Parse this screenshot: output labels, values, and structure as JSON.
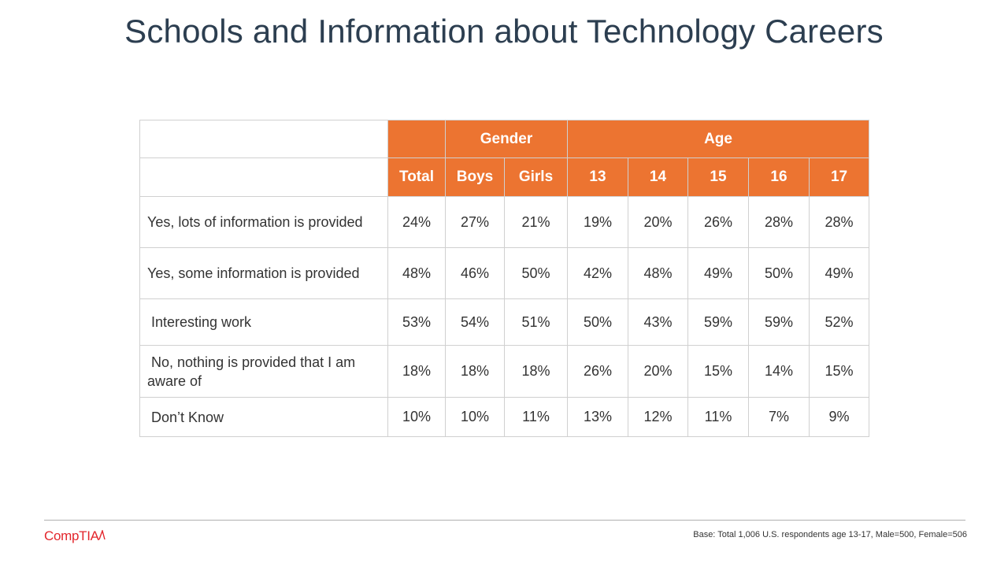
{
  "title": "Schools and Information about Technology Careers",
  "table": {
    "group_headers": {
      "gender": "Gender",
      "age": "Age"
    },
    "columns": [
      "Total",
      "Boys",
      "Girls",
      "13",
      "14",
      "15",
      "16",
      "17"
    ],
    "rows": [
      {
        "label": "Yes, lots of information is provided",
        "values": [
          "24%",
          "27%",
          "21%",
          "19%",
          "20%",
          "26%",
          "28%",
          "28%"
        ]
      },
      {
        "label": "Yes, some information is provided",
        "values": [
          "48%",
          "46%",
          "50%",
          "42%",
          "48%",
          "49%",
          "50%",
          "49%"
        ]
      },
      {
        "label": " Interesting work",
        "values": [
          "53%",
          "54%",
          "51%",
          "50%",
          "43%",
          "59%",
          "59%",
          "52%"
        ]
      },
      {
        "label": " No, nothing is provided that I am aware of",
        "values": [
          "18%",
          "18%",
          "18%",
          "26%",
          "20%",
          "15%",
          "14%",
          "15%"
        ]
      },
      {
        "label": " Don’t Know",
        "values": [
          "10%",
          "10%",
          "11%",
          "13%",
          "12%",
          "11%",
          "7%",
          "9%"
        ]
      }
    ]
  },
  "footer": {
    "logo_text": "CompTIA",
    "base_note": "Base: Total 1,006 U.S. respondents age 13-17, Male=500, Female=506"
  },
  "colors": {
    "header_orange": "#ec7431",
    "title": "#2c3e50",
    "logo_red": "#e3262c"
  }
}
